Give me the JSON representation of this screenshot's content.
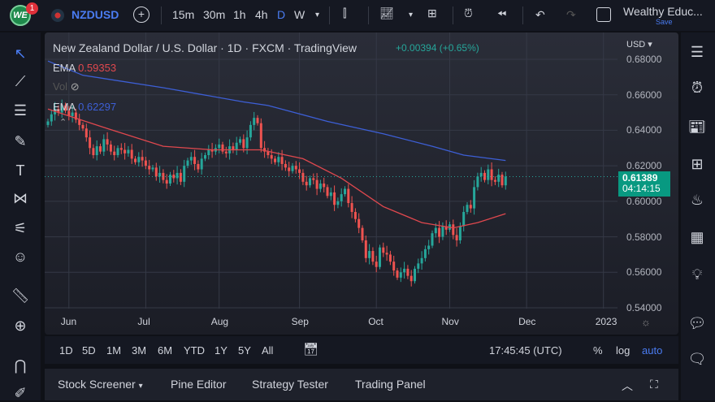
{
  "topbar": {
    "notifications": "1",
    "logo_text": "WE",
    "symbol": "NZDUSD",
    "intervals": [
      "15m",
      "30m",
      "1h",
      "4h",
      "D",
      "W"
    ],
    "active_interval": "D",
    "layout_name": "Wealthy Educ...",
    "save_label": "Save"
  },
  "chart": {
    "title": "New Zealand Dollar / U.S. Dollar · 1D · FXCM · TradingView",
    "change": "+0.00394 (+0.65%)",
    "currency": "USD",
    "ema1_label": "EMA",
    "ema1_value": "0.59353",
    "vol_label": "Vol",
    "ema2_label": "EMA",
    "ema2_value": "0.62297",
    "current_price": "0.61389",
    "countdown": "04:14:15",
    "colors": {
      "up": "#26a69a",
      "down": "#ef5350",
      "ema_fast": "#e0484e",
      "ema_slow": "#3d5fd6",
      "price_tag": "#089981"
    }
  },
  "chart_data": {
    "type": "candlestick",
    "price_ticks": [
      "0.68000",
      "0.66000",
      "0.64000",
      "0.62000",
      "0.60000",
      "0.58000",
      "0.56000",
      "0.54000"
    ],
    "ylim": [
      0.54,
      0.68
    ],
    "month_labels": [
      {
        "label": "Jun",
        "index": 6
      },
      {
        "label": "Jul",
        "index": 28
      },
      {
        "label": "Aug",
        "index": 49
      },
      {
        "label": "Sep",
        "index": 72
      },
      {
        "label": "Oct",
        "index": 94
      },
      {
        "label": "Nov",
        "index": 115
      },
      {
        "label": "Dec",
        "index": 137
      },
      {
        "label": "2023",
        "index": 159
      }
    ],
    "closes": [
      0.645,
      0.649,
      0.652,
      0.65,
      0.654,
      0.651,
      0.648,
      0.65,
      0.646,
      0.643,
      0.641,
      0.636,
      0.63,
      0.626,
      0.631,
      0.628,
      0.635,
      0.632,
      0.628,
      0.626,
      0.63,
      0.629,
      0.627,
      0.629,
      0.624,
      0.622,
      0.625,
      0.623,
      0.62,
      0.618,
      0.619,
      0.614,
      0.616,
      0.612,
      0.61,
      0.615,
      0.613,
      0.616,
      0.611,
      0.62,
      0.623,
      0.625,
      0.621,
      0.618,
      0.624,
      0.626,
      0.629,
      0.628,
      0.63,
      0.632,
      0.628,
      0.627,
      0.631,
      0.629,
      0.633,
      0.635,
      0.63,
      0.636,
      0.643,
      0.647,
      0.644,
      0.63,
      0.628,
      0.626,
      0.624,
      0.622,
      0.625,
      0.621,
      0.619,
      0.617,
      0.62,
      0.618,
      0.616,
      0.611,
      0.609,
      0.613,
      0.612,
      0.607,
      0.61,
      0.608,
      0.603,
      0.605,
      0.598,
      0.6,
      0.604,
      0.607,
      0.599,
      0.594,
      0.59,
      0.585,
      0.578,
      0.568,
      0.572,
      0.566,
      0.563,
      0.574,
      0.571,
      0.57,
      0.566,
      0.561,
      0.557,
      0.56,
      0.562,
      0.558,
      0.555,
      0.562,
      0.565,
      0.568,
      0.573,
      0.575,
      0.582,
      0.585,
      0.58,
      0.586,
      0.584,
      0.587,
      0.581,
      0.578,
      0.586,
      0.594,
      0.598,
      0.596,
      0.608,
      0.614,
      0.616,
      0.612,
      0.618,
      0.612,
      0.611,
      0.615,
      0.609,
      0.614
    ],
    "ema_slow": [
      [
        0,
        0.679
      ],
      [
        10,
        0.671
      ],
      [
        33,
        0.664
      ],
      [
        56,
        0.656
      ],
      [
        63,
        0.654
      ],
      [
        80,
        0.645
      ],
      [
        96,
        0.638
      ],
      [
        110,
        0.631
      ],
      [
        119,
        0.626
      ],
      [
        131,
        0.623
      ]
    ],
    "ema_fast": [
      [
        0,
        0.652
      ],
      [
        17,
        0.641
      ],
      [
        33,
        0.631
      ],
      [
        47,
        0.629
      ],
      [
        61,
        0.629
      ],
      [
        73,
        0.624
      ],
      [
        84,
        0.613
      ],
      [
        96,
        0.597
      ],
      [
        107,
        0.588
      ],
      [
        116,
        0.585
      ],
      [
        123,
        0.588
      ],
      [
        131,
        0.593
      ]
    ]
  },
  "time_axis": {
    "clock": "17:45:45 (UTC)"
  },
  "ranges": {
    "items": [
      "1D",
      "5D",
      "1M",
      "3M",
      "6M",
      "YTD",
      "1Y",
      "5Y",
      "All"
    ],
    "percent": "%",
    "log": "log",
    "auto": "auto"
  },
  "bottom_tabs": [
    "Stock Screener",
    "Pine Editor",
    "Strategy Tester",
    "Trading Panel"
  ]
}
